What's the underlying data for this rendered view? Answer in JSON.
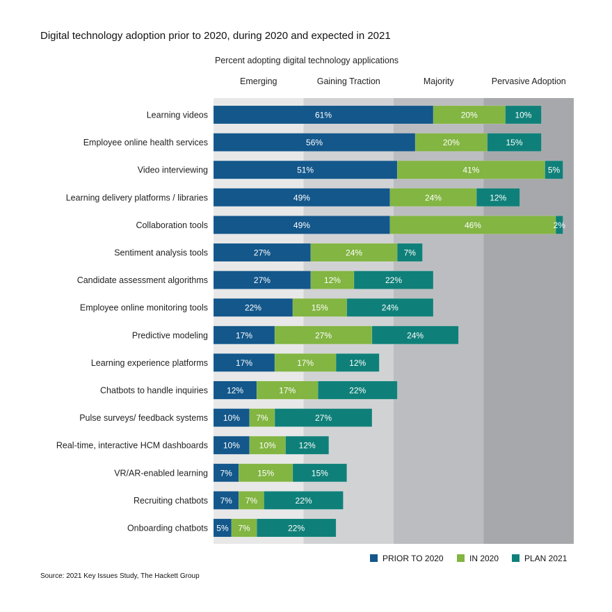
{
  "chart_data": {
    "type": "bar",
    "orientation": "horizontal",
    "stacked": true,
    "title": "Digital technology adoption prior to 2020, during 2020 and expected in 2021",
    "subtitle": "Percent adopting digital technology applications",
    "xlim": [
      0,
      100
    ],
    "bands": [
      {
        "label": "Emerging",
        "range": [
          0,
          25
        ],
        "color": "#e8e8e8"
      },
      {
        "label": "Gaining Traction",
        "range": [
          25,
          50
        ],
        "color": "#d1d2d4"
      },
      {
        "label": "Majority",
        "range": [
          50,
          75
        ],
        "color": "#bcbdc0"
      },
      {
        "label": "Pervasive Adoption",
        "range": [
          75,
          100
        ],
        "color": "#a7a8ab"
      }
    ],
    "categories": [
      "Learning videos",
      "Employee online health services",
      "Video interviewing",
      "Learning delivery platforms / libraries",
      "Collaboration tools",
      "Sentiment analysis tools",
      "Candidate assessment algorithms",
      "Employee online monitoring tools",
      "Predictive modeling",
      "Learning experience platforms",
      "Chatbots to handle inquiries",
      "Pulse surveys/ feedback systems",
      "Real-time, interactive HCM dashboards",
      "VR/AR-enabled learning",
      "Recruiting chatbots",
      "Onboarding chatbots"
    ],
    "series": [
      {
        "name": "PRIOR TO 2020",
        "color": "#13578b",
        "values": [
          61,
          56,
          51,
          49,
          49,
          27,
          27,
          22,
          17,
          17,
          12,
          10,
          10,
          7,
          7,
          5
        ]
      },
      {
        "name": "IN 2020",
        "color": "#82b541",
        "values": [
          20,
          20,
          41,
          24,
          46,
          24,
          12,
          15,
          27,
          17,
          17,
          7,
          10,
          15,
          7,
          7
        ]
      },
      {
        "name": "PLAN 2021",
        "color": "#0f8079",
        "values": [
          10,
          15,
          5,
          12,
          2,
          7,
          22,
          24,
          24,
          12,
          22,
          27,
          12,
          15,
          22,
          22
        ]
      }
    ],
    "legend_position": "bottom-right",
    "source": "Source: 2021 Key Issues Study, The Hackett Group"
  }
}
